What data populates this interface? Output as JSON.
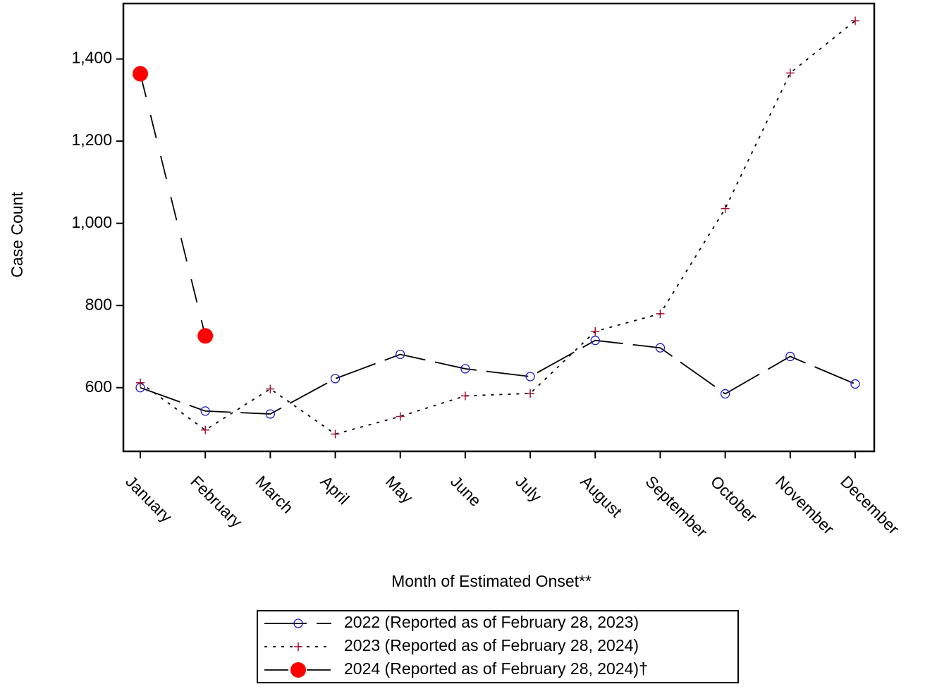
{
  "chart_data": {
    "type": "line",
    "x_label": "Month of Estimated Onset**",
    "y_label": "Case Count",
    "categories": [
      "January",
      "February",
      "March",
      "April",
      "May",
      "June",
      "July",
      "August",
      "September",
      "October",
      "November",
      "December"
    ],
    "series": [
      {
        "name": "2022 (Reported as of February 28, 2023)",
        "color": "#1a1acc",
        "marker": "circle",
        "line_style": "dash",
        "values": [
          600,
          543,
          536,
          622,
          681,
          646,
          627,
          715,
          697,
          585,
          676,
          609
        ]
      },
      {
        "name": "2023 (Reported as of February 28, 2024)",
        "color": "#a01030",
        "marker": "plus",
        "line_style": "dot",
        "values": [
          612,
          497,
          597,
          487,
          530,
          580,
          586,
          737,
          780,
          1036,
          1366,
          1493
        ]
      },
      {
        "name": "2024 (Reported as of February 28, 2024)†",
        "color": "#ff0000",
        "marker": "dot",
        "line_style": "longdash",
        "values": [
          1364,
          726,
          null,
          null,
          null,
          null,
          null,
          null,
          null,
          null,
          null,
          null
        ]
      }
    ],
    "ylim": [
      445,
      1535
    ],
    "yticks": [
      600,
      800,
      {
        "value": 1000,
        "label": "1,000"
      },
      {
        "value": 1200,
        "label": "1,200"
      },
      {
        "value": 1400,
        "label": "1,400"
      }
    ],
    "grid": false,
    "legend": "bottom"
  }
}
